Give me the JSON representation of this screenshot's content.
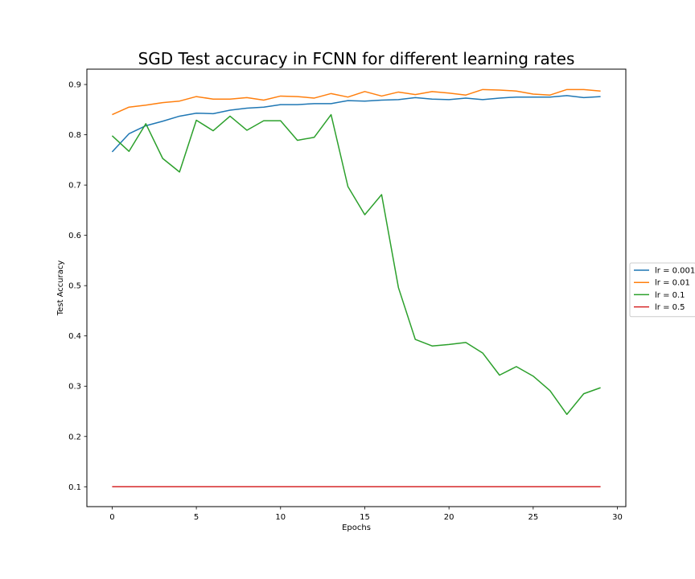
{
  "chart_data": {
    "type": "line",
    "title": "SGD Test accuracy in FCNN for different learning rates",
    "xlabel": "Epochs",
    "ylabel": "Test Accuracy",
    "xlim": [
      -1.5,
      30.5
    ],
    "ylim": [
      0.0605,
      0.9305
    ],
    "xticks": [
      0,
      5,
      10,
      15,
      20,
      25,
      30
    ],
    "yticks": [
      0.1,
      0.2,
      0.3,
      0.4,
      0.5,
      0.6,
      0.7,
      0.8,
      0.9
    ],
    "ytick_labels": [
      "0.1",
      "0.2",
      "0.3",
      "0.4",
      "0.5",
      "0.6",
      "0.7",
      "0.8",
      "0.9"
    ],
    "grid": false,
    "legend_position": "center-right outside",
    "x": [
      0,
      1,
      2,
      3,
      4,
      5,
      6,
      7,
      8,
      9,
      10,
      11,
      12,
      13,
      14,
      15,
      16,
      17,
      18,
      19,
      20,
      21,
      22,
      23,
      24,
      25,
      26,
      27,
      28,
      29
    ],
    "series": [
      {
        "name": "lr = 0.001",
        "color": "#1f77b4",
        "values": [
          0.766,
          0.802,
          0.818,
          0.827,
          0.837,
          0.843,
          0.842,
          0.849,
          0.853,
          0.855,
          0.86,
          0.86,
          0.862,
          0.862,
          0.868,
          0.867,
          0.869,
          0.87,
          0.874,
          0.871,
          0.87,
          0.873,
          0.87,
          0.873,
          0.875,
          0.875,
          0.875,
          0.878,
          0.874,
          0.876
        ]
      },
      {
        "name": "lr = 0.01",
        "color": "#ff7f0e",
        "values": [
          0.84,
          0.855,
          0.859,
          0.864,
          0.867,
          0.876,
          0.871,
          0.871,
          0.874,
          0.869,
          0.877,
          0.876,
          0.873,
          0.882,
          0.875,
          0.886,
          0.877,
          0.885,
          0.88,
          0.886,
          0.883,
          0.879,
          0.89,
          0.889,
          0.887,
          0.881,
          0.879,
          0.89,
          0.89,
          0.887
        ]
      },
      {
        "name": "lr = 0.1",
        "color": "#2ca02c",
        "values": [
          0.798,
          0.767,
          0.822,
          0.753,
          0.726,
          0.829,
          0.808,
          0.837,
          0.809,
          0.828,
          0.828,
          0.789,
          0.795,
          0.84,
          0.697,
          0.641,
          0.681,
          0.496,
          0.393,
          0.38,
          0.383,
          0.387,
          0.366,
          0.322,
          0.339,
          0.32,
          0.291,
          0.244,
          0.285,
          0.297
        ]
      },
      {
        "name": "lr = 0.5",
        "color": "#d62728",
        "values": [
          0.1,
          0.1,
          0.1,
          0.1,
          0.1,
          0.1,
          0.1,
          0.1,
          0.1,
          0.1,
          0.1,
          0.1,
          0.1,
          0.1,
          0.1,
          0.1,
          0.1,
          0.1,
          0.1,
          0.1,
          0.1,
          0.1,
          0.1,
          0.1,
          0.1,
          0.1,
          0.1,
          0.1,
          0.1,
          0.1
        ]
      }
    ]
  }
}
